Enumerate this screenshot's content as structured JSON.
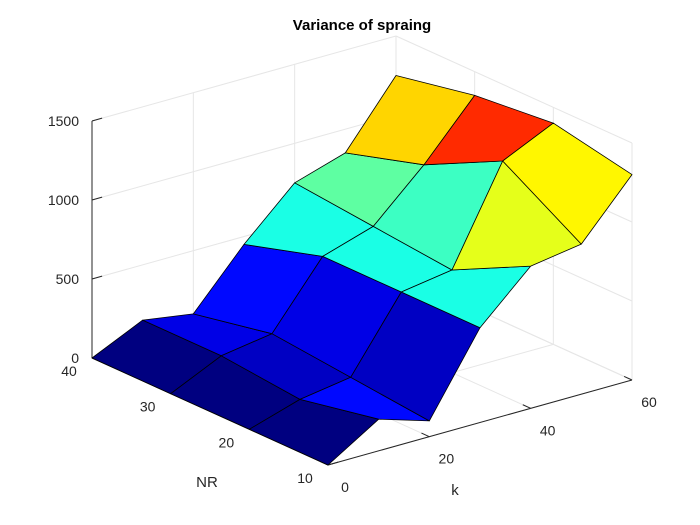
{
  "chart_data": {
    "type": "surface",
    "title": "Variance of spraing",
    "xlabel": "k",
    "ylabel": "NR",
    "zlabel": "",
    "x": [
      0,
      20,
      40,
      60
    ],
    "y": [
      10,
      20,
      30,
      40
    ],
    "xlim": [
      0,
      60
    ],
    "ylim": [
      10,
      40
    ],
    "zlim": [
      0,
      1500
    ],
    "x_ticks": [
      "0",
      "20",
      "40",
      "60"
    ],
    "y_ticks": [
      "10",
      "20",
      "30",
      "40"
    ],
    "z_ticks": [
      "0",
      "500",
      "1000",
      "1500"
    ],
    "grid": true,
    "colormap": "jet",
    "x_values": [
      0,
      10,
      20,
      30,
      40,
      50,
      60
    ],
    "y_values": [
      10,
      20,
      30,
      40
    ],
    "z": [
      [
        0,
        200,
        100,
        600,
        900,
        950,
        1300
      ],
      [
        0,
        100,
        150,
        600,
        650,
        1250,
        1400
      ],
      [
        0,
        150,
        200,
        600,
        700,
        1000,
        1350
      ],
      [
        0,
        150,
        100,
        450,
        750,
        850,
        1250
      ]
    ]
  }
}
